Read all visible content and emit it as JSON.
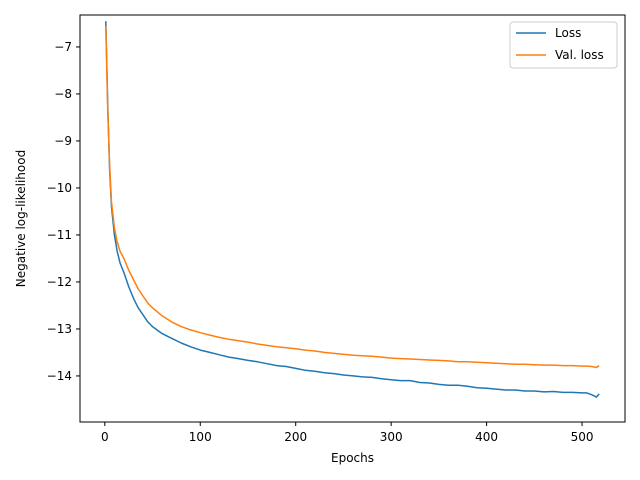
{
  "chart_data": {
    "type": "line",
    "xlabel": "Epochs",
    "ylabel": "Negative log-likelihood",
    "xlim": [
      -26,
      545
    ],
    "ylim": [
      -14.98,
      -6.32
    ],
    "xticks": [
      0,
      100,
      200,
      300,
      400,
      500
    ],
    "xtick_labels": [
      "0",
      "100",
      "200",
      "300",
      "400",
      "500"
    ],
    "yticks": [
      -7,
      -8,
      -9,
      -10,
      -11,
      -12,
      -13,
      -14
    ],
    "ytick_labels": [
      "−7",
      "−8",
      "−9",
      "−10",
      "−11",
      "−12",
      "−13",
      "−14"
    ],
    "grid": false,
    "legend_position": "top-right",
    "series": [
      {
        "name": "Loss",
        "color": "#1f77b4",
        "x": [
          1,
          3,
          5,
          7,
          10,
          13,
          16,
          20,
          25,
          30,
          35,
          40,
          45,
          50,
          60,
          70,
          80,
          90,
          100,
          110,
          120,
          130,
          140,
          150,
          160,
          170,
          180,
          190,
          200,
          210,
          220,
          230,
          240,
          250,
          260,
          270,
          280,
          290,
          300,
          310,
          320,
          330,
          340,
          350,
          360,
          370,
          380,
          390,
          400,
          410,
          420,
          430,
          440,
          450,
          460,
          470,
          480,
          490,
          500,
          505,
          510,
          515,
          518
        ],
        "y": [
          -6.45,
          -8.2,
          -9.6,
          -10.4,
          -11.0,
          -11.35,
          -11.6,
          -11.8,
          -12.1,
          -12.35,
          -12.55,
          -12.7,
          -12.85,
          -12.95,
          -13.1,
          -13.2,
          -13.3,
          -13.38,
          -13.45,
          -13.5,
          -13.55,
          -13.6,
          -13.63,
          -13.67,
          -13.7,
          -13.74,
          -13.78,
          -13.8,
          -13.84,
          -13.88,
          -13.9,
          -13.93,
          -13.95,
          -13.98,
          -14.0,
          -14.02,
          -14.03,
          -14.06,
          -14.08,
          -14.1,
          -14.1,
          -14.14,
          -14.15,
          -14.18,
          -14.2,
          -14.2,
          -14.22,
          -14.25,
          -14.26,
          -14.28,
          -14.3,
          -14.3,
          -14.32,
          -14.32,
          -14.34,
          -14.33,
          -14.35,
          -14.35,
          -14.36,
          -14.36,
          -14.4,
          -14.45,
          -14.38
        ]
      },
      {
        "name": "Val. loss",
        "color": "#ff7f0e",
        "x": [
          1,
          3,
          5,
          7,
          10,
          13,
          16,
          20,
          25,
          30,
          35,
          40,
          45,
          50,
          60,
          70,
          80,
          90,
          100,
          110,
          120,
          130,
          140,
          150,
          160,
          170,
          180,
          190,
          200,
          210,
          220,
          230,
          240,
          250,
          260,
          270,
          280,
          290,
          300,
          310,
          320,
          330,
          340,
          350,
          360,
          370,
          380,
          390,
          400,
          410,
          420,
          430,
          440,
          450,
          460,
          470,
          480,
          490,
          500,
          505,
          510,
          515,
          518
        ],
        "y": [
          -6.55,
          -8.3,
          -9.5,
          -10.3,
          -10.85,
          -11.15,
          -11.35,
          -11.5,
          -11.75,
          -11.95,
          -12.15,
          -12.3,
          -12.45,
          -12.55,
          -12.72,
          -12.85,
          -12.95,
          -13.02,
          -13.08,
          -13.13,
          -13.18,
          -13.22,
          -13.25,
          -13.28,
          -13.32,
          -13.35,
          -13.38,
          -13.4,
          -13.42,
          -13.45,
          -13.47,
          -13.5,
          -13.52,
          -13.54,
          -13.56,
          -13.57,
          -13.58,
          -13.6,
          -13.62,
          -13.63,
          -13.64,
          -13.65,
          -13.66,
          -13.67,
          -13.68,
          -13.7,
          -13.7,
          -13.71,
          -13.72,
          -13.73,
          -13.74,
          -13.75,
          -13.75,
          -13.76,
          -13.77,
          -13.77,
          -13.78,
          -13.78,
          -13.79,
          -13.79,
          -13.8,
          -13.82,
          -13.78
        ]
      }
    ]
  }
}
